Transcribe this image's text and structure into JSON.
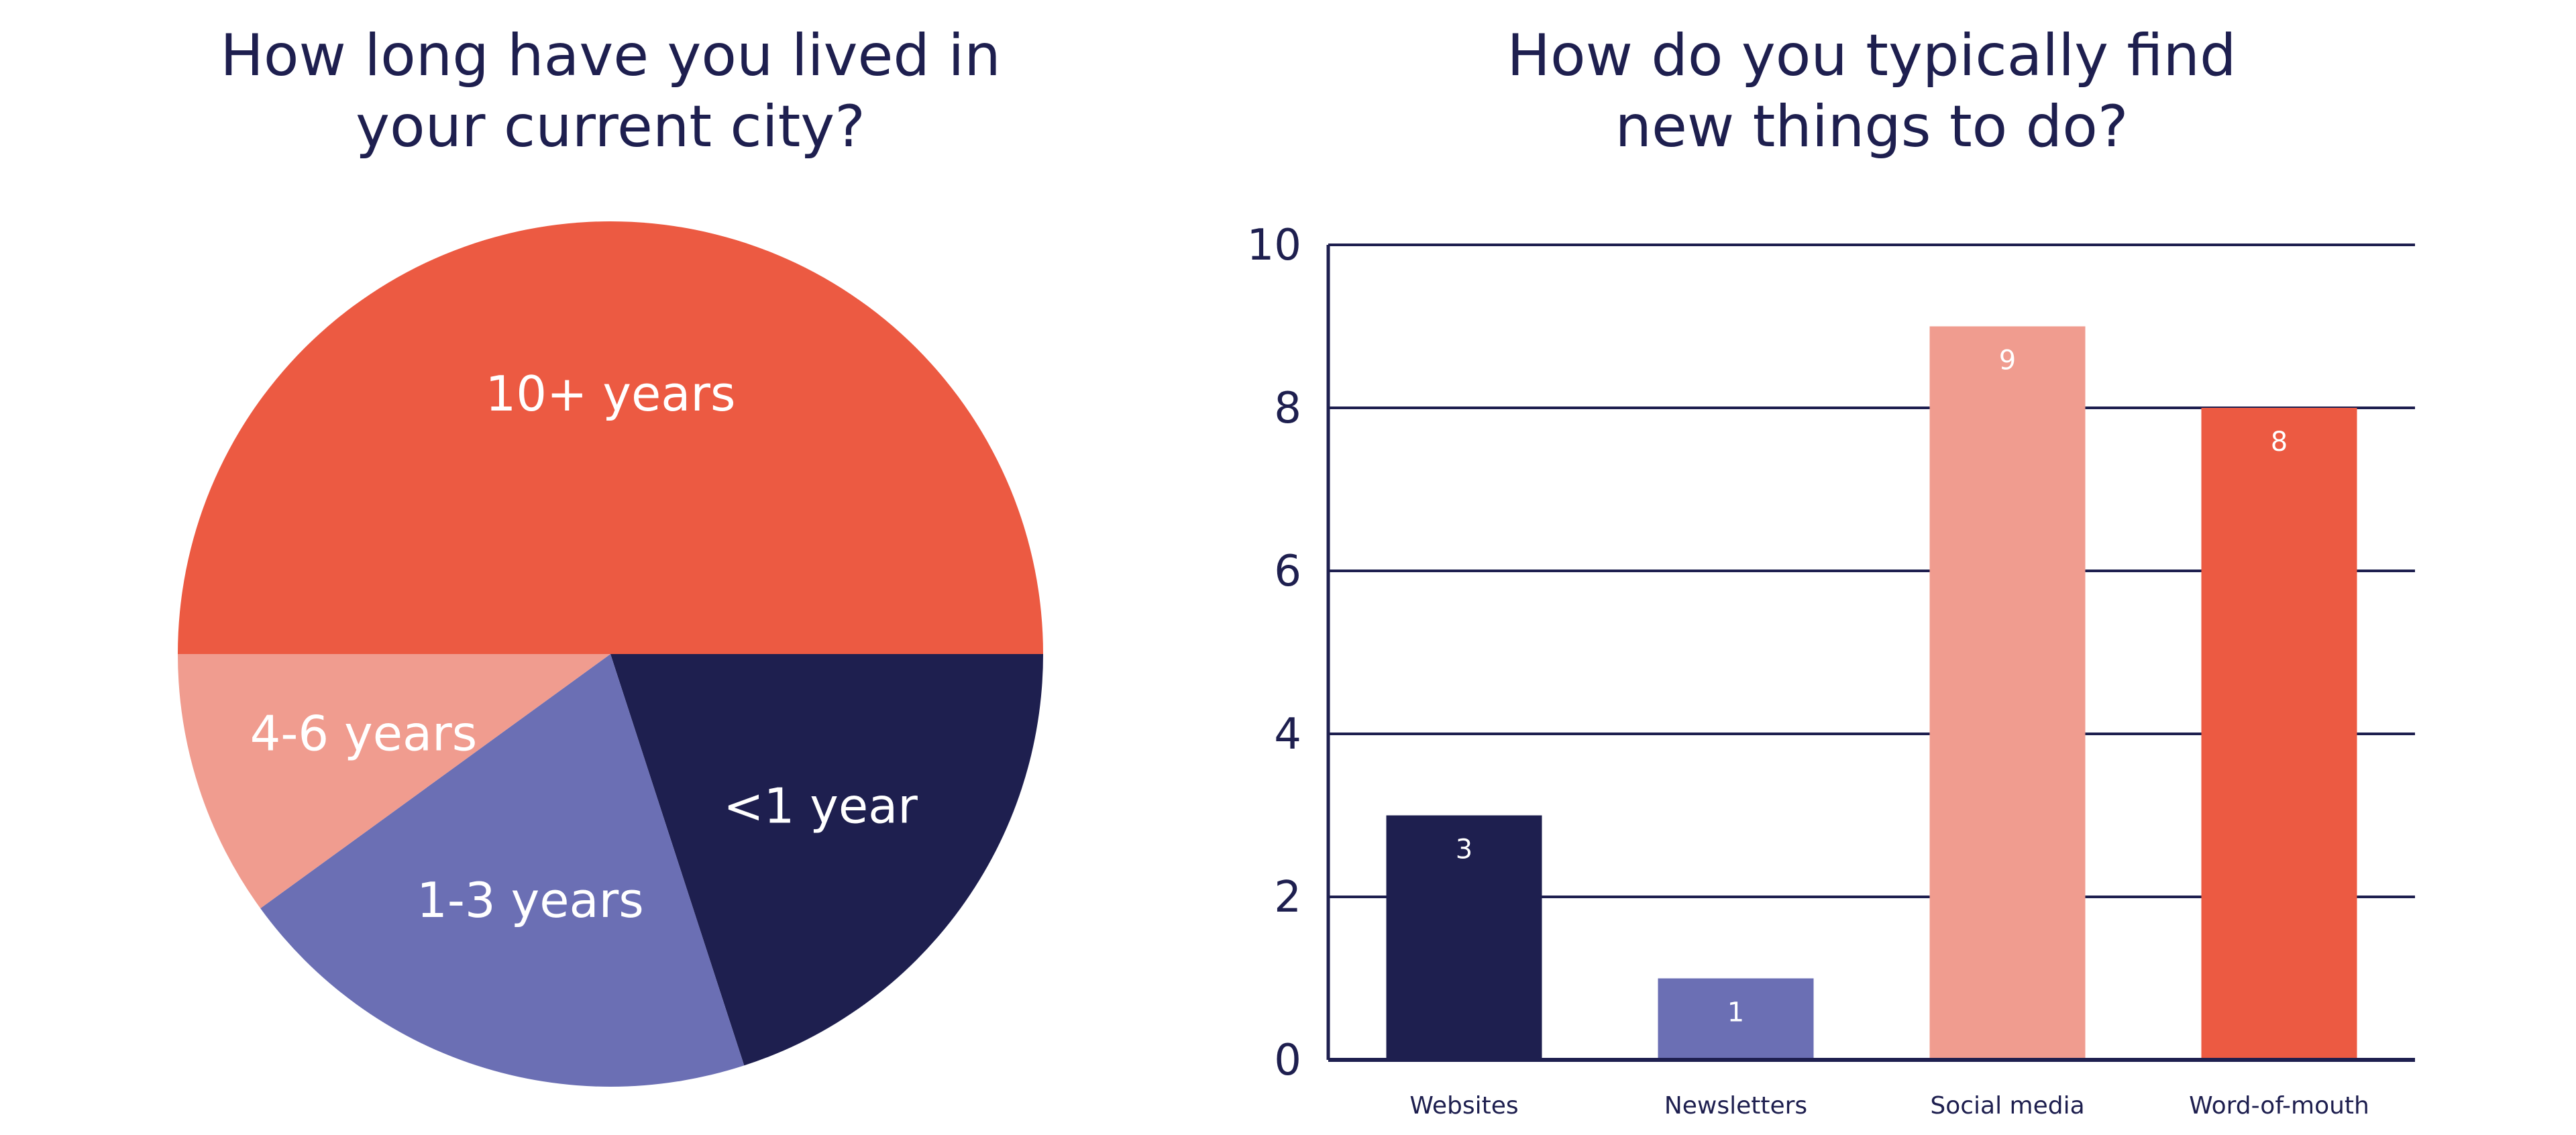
{
  "chart_data": [
    {
      "type": "pie",
      "title_lines": [
        "How long have you lived in",
        "your current city?"
      ],
      "slices": [
        {
          "label": "10+ years",
          "value": 50,
          "color": "#ec5a42"
        },
        {
          "label": "<1 year",
          "value": 20,
          "color": "#1e1f4f"
        },
        {
          "label": "1-3 years",
          "value": 20,
          "color": "#6b6fb4"
        },
        {
          "label": "4-6 years",
          "value": 10,
          "color": "#f09c8f"
        }
      ]
    },
    {
      "type": "bar",
      "title_lines": [
        "How do you typically find",
        "new things to do?"
      ],
      "categories": [
        "Websites",
        "Newsletters",
        "Social media",
        "Word-of-mouth"
      ],
      "values": [
        3,
        1,
        9,
        8
      ],
      "data_labels": [
        "3",
        "1",
        "9",
        "8"
      ],
      "colors": [
        "#1e1f4f",
        "#6b6fb4",
        "#f09c8f",
        "#ec5a42"
      ],
      "ylim": [
        0,
        10
      ],
      "yticks": [
        "0",
        "2",
        "4",
        "6",
        "8",
        "10"
      ],
      "grid": true
    }
  ]
}
